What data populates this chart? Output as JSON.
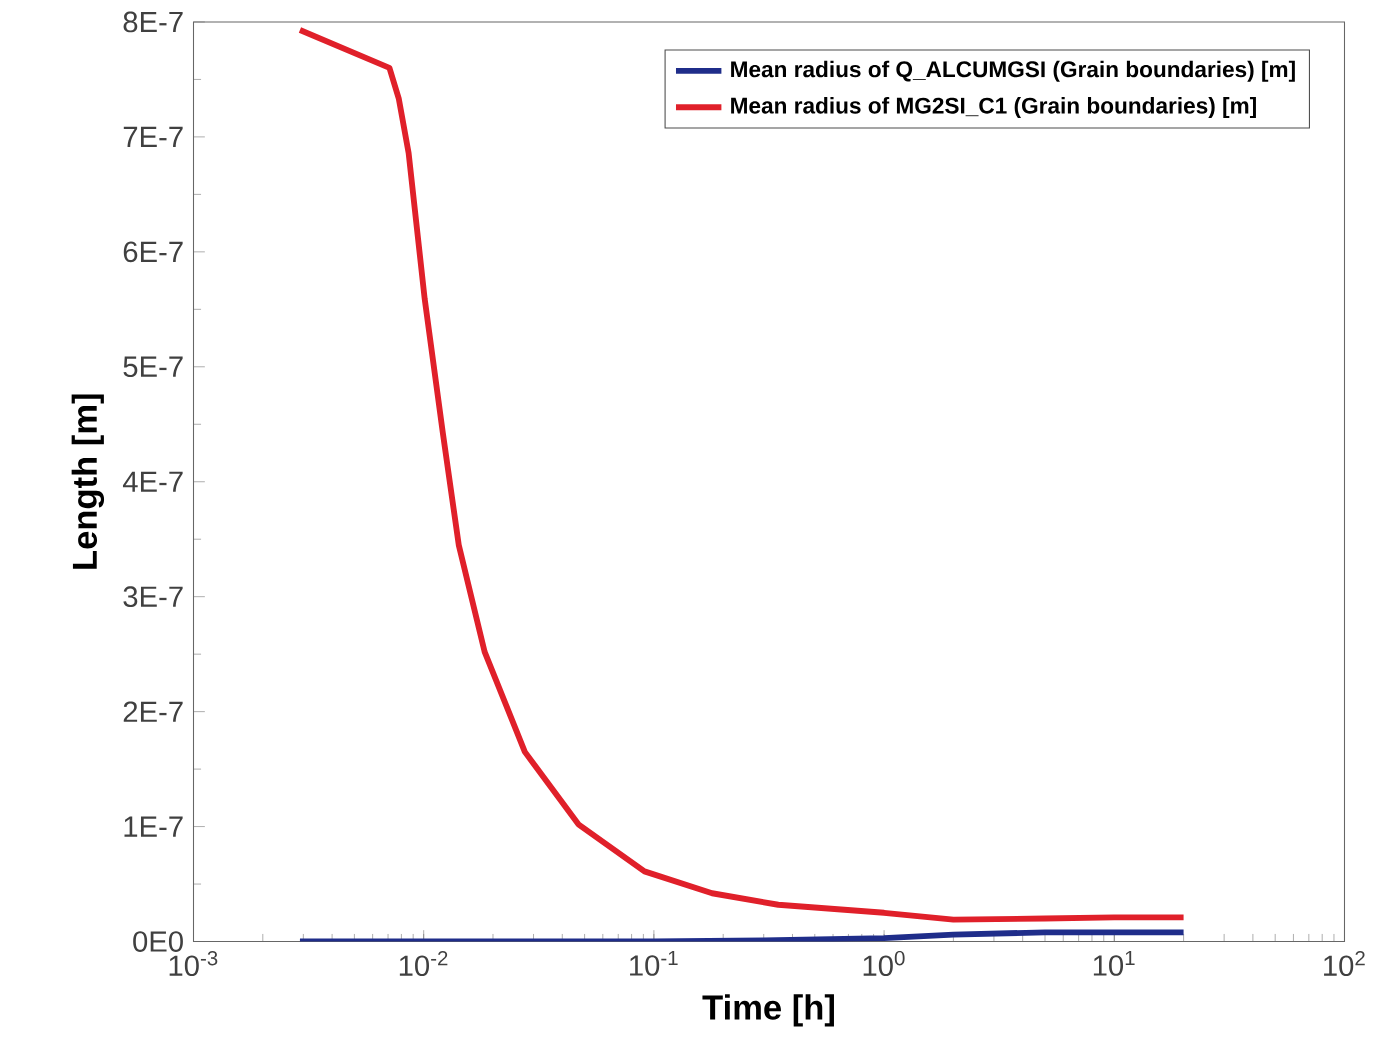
{
  "chart_data": {
    "type": "line",
    "xlabel": "Time [h]",
    "ylabel": "Length [m]",
    "log": "x",
    "xlim": [
      0.001,
      100
    ],
    "ylim": [
      0,
      8e-07
    ],
    "xticks": [
      {
        "value": 0.001,
        "label": "10$^{-3}$"
      },
      {
        "value": 0.01,
        "label": "10$^{-2}$"
      },
      {
        "value": 0.1,
        "label": "10$^{-1}$"
      },
      {
        "value": 1,
        "label": "10$^{0}$"
      },
      {
        "value": 10,
        "label": "10$^{1}$"
      },
      {
        "value": 100,
        "label": "10$^{2}$"
      }
    ],
    "yticks": [
      {
        "value": 0,
        "label": "0E0"
      },
      {
        "value": 1e-07,
        "label": "1E-7"
      },
      {
        "value": 2e-07,
        "label": "2E-7"
      },
      {
        "value": 3e-07,
        "label": "3E-7"
      },
      {
        "value": 4e-07,
        "label": "4E-7"
      },
      {
        "value": 5e-07,
        "label": "5E-7"
      },
      {
        "value": 6e-07,
        "label": "6E-7"
      },
      {
        "value": 7e-07,
        "label": "7E-7"
      },
      {
        "value": 8e-07,
        "label": "8E-7"
      }
    ],
    "legend": "top right",
    "marker": "none",
    "line_style": "solid",
    "series": [
      {
        "name": "Mean radius of Q_ALCUMGSI (Grain boundaries) [m]",
        "color": "#1f2d8a",
        "x": [
          0.0029,
          0.01,
          0.1,
          0.3,
          1,
          2,
          5,
          10,
          20
        ],
        "values": [
          0,
          0,
          0,
          1e-09,
          3e-09,
          6e-09,
          8e-09,
          8e-09,
          8e-09
        ]
      },
      {
        "name": "Mean radius of MG2SI_C1 (Grain boundaries) [m]",
        "color": "#e0202a",
        "x": [
          0.0029,
          0.0071,
          0.0078,
          0.0086,
          0.0101,
          0.0121,
          0.0142,
          0.0184,
          0.0275,
          0.047,
          0.091,
          0.179,
          0.347,
          1,
          2,
          5,
          10,
          20
        ],
        "values": [
          7.93e-07,
          7.6e-07,
          7.33e-07,
          6.86e-07,
          5.59e-07,
          4.43e-07,
          3.45e-07,
          2.52e-07,
          1.65e-07,
          1.02e-07,
          6.1e-08,
          4.2e-08,
          3.2e-08,
          2.5e-08,
          1.9e-08,
          2e-08,
          2.1e-08,
          2.1e-08
        ]
      }
    ]
  }
}
